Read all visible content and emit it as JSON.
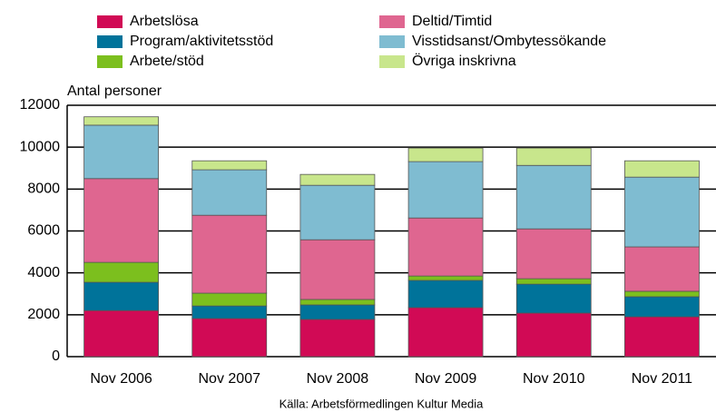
{
  "chart_data": {
    "type": "bar",
    "stacked": true,
    "y_axis_label": "Antal personer",
    "source": "Källa: Arbetsförmedlingen Kultur Media",
    "categories": [
      "Nov 2006",
      "Nov 2007",
      "Nov 2008",
      "Nov 2009",
      "Nov 2010",
      "Nov 2011"
    ],
    "series": [
      {
        "name": "Arbetslösa",
        "color": "#d10a55",
        "values": [
          2200,
          1820,
          1780,
          2340,
          2080,
          1900
        ]
      },
      {
        "name": "Program/aktivitetsstöd",
        "color": "#00739a",
        "values": [
          1350,
          600,
          690,
          1300,
          1380,
          960
        ]
      },
      {
        "name": "Arbete/stöd",
        "color": "#7cbf1e",
        "values": [
          950,
          610,
          260,
          210,
          260,
          260
        ]
      },
      {
        "name": "Deltid/Timtid",
        "color": "#df6690",
        "values": [
          4000,
          3720,
          2850,
          2770,
          2380,
          2120
        ]
      },
      {
        "name": "Visstidsanst/Ombytessökande",
        "color": "#7fbcd1",
        "values": [
          2550,
          2170,
          2600,
          2690,
          3030,
          3330
        ]
      },
      {
        "name": "Övriga inskrivna",
        "color": "#c8e68c",
        "values": [
          400,
          430,
          520,
          650,
          830,
          780
        ]
      }
    ],
    "ylim": [
      0,
      12000
    ],
    "yticks": [
      0,
      2000,
      4000,
      6000,
      8000,
      10000,
      12000
    ],
    "grid": true
  }
}
